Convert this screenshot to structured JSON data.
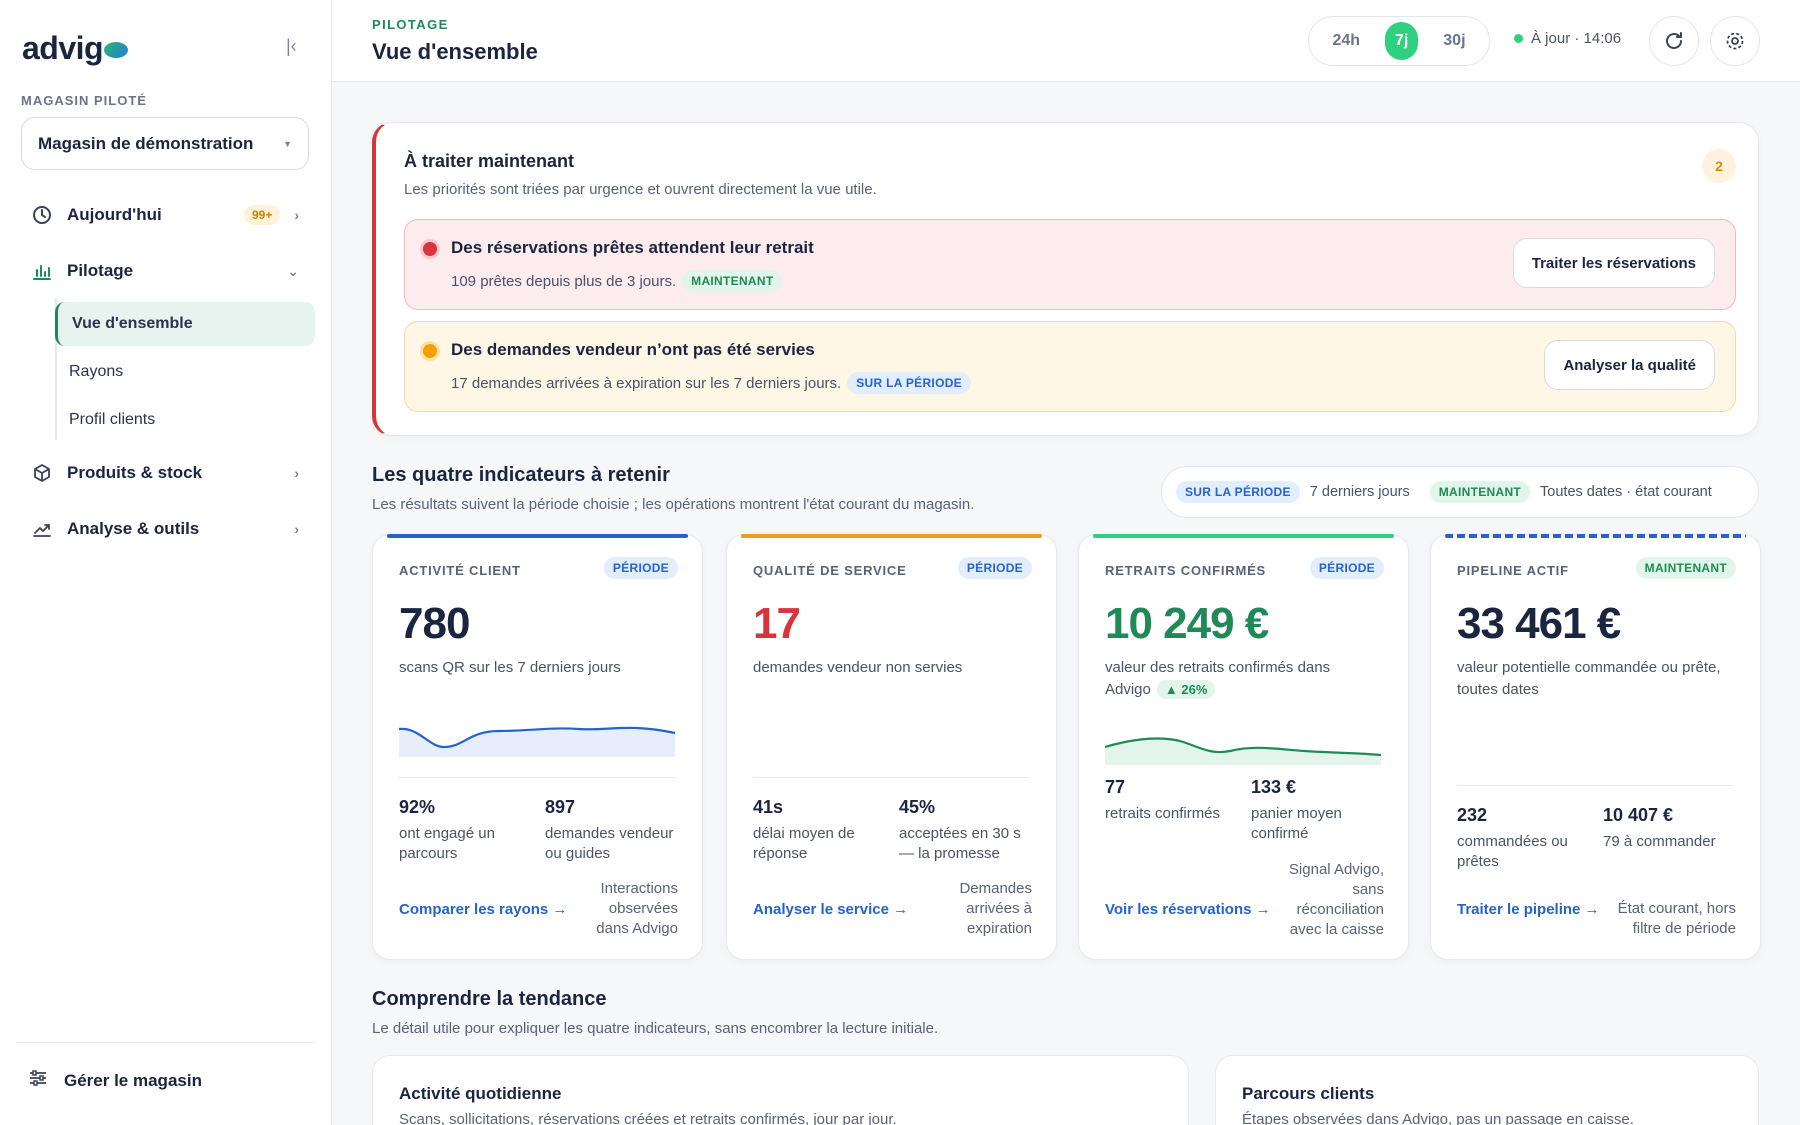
{
  "app": {
    "logo": "advig"
  },
  "sidebar": {
    "store_section": "MAGASIN PILOTÉ",
    "store_name": "Magasin de démonstration",
    "items": [
      {
        "label": "Aujourd'hui",
        "badge": "99+"
      },
      {
        "label": "Pilotage"
      },
      {
        "label": "Produits & stock"
      },
      {
        "label": "Analyse & outils"
      }
    ],
    "subitems": [
      {
        "label": "Vue d'ensemble"
      },
      {
        "label": "Rayons"
      },
      {
        "label": "Profil clients"
      }
    ],
    "manage_label": "Gérer le magasin"
  },
  "header": {
    "eyebrow": "PILOTAGE",
    "title": "Vue d'ensemble",
    "periods": [
      "24h",
      "7j",
      "30j"
    ],
    "active_period": "7j",
    "status": "À jour · 14:06"
  },
  "priorities": {
    "title": "À traiter maintenant",
    "subtitle": "Les priorités sont triées par urgence et ouvrent directement la vue utile.",
    "count": "2",
    "alerts": [
      {
        "title": "Des réservations prêtes attendent leur retrait",
        "text": "109 prêtes depuis plus de 3 jours.",
        "tag": "MAINTENANT",
        "action": "Traiter les réservations"
      },
      {
        "title": "Des demandes vendeur n’ont pas été servies",
        "text": "17 demandes arrivées à expiration sur les 7 derniers jours.",
        "tag": "SUR LA PÉRIODE",
        "action": "Analyser la qualité"
      }
    ]
  },
  "indicators": {
    "title": "Les quatre indicateurs à retenir",
    "subtitle": "Les résultats suivent la période choisie ; les opérations montrent l'état courant du magasin.",
    "legend": {
      "period_tag": "SUR LA PÉRIODE",
      "period_text": "7 derniers jours",
      "now_tag": "MAINTENANT",
      "now_text": "Toutes dates · état courant"
    },
    "cards": [
      {
        "label": "ACTIVITÉ CLIENT",
        "tag": "PÉRIODE",
        "value": "780",
        "desc": "scans QR sur les 7 derniers jours",
        "m1_value": "92%",
        "m1_label": "ont engagé un parcours",
        "m2_value": "897",
        "m2_label": "demandes vendeur ou guides",
        "link": "Comparer les rayons →",
        "note": "Interactions observées dans Advigo"
      },
      {
        "label": "QUALITÉ DE SERVICE",
        "tag": "PÉRIODE",
        "value": "17",
        "desc": "demandes vendeur non servies",
        "m1_value": "41s",
        "m1_label": "délai moyen de réponse",
        "m2_value": "45%",
        "m2_label": "acceptées en 30 s — la promesse",
        "link": "Analyser le service →",
        "note": "Demandes arrivées à expiration"
      },
      {
        "label": "RETRAITS CONFIRMÉS",
        "tag": "PÉRIODE",
        "value": "10 249 €",
        "desc": "valeur des retraits confirmés dans Advigo",
        "trend": "▲ 26%",
        "m1_value": "77",
        "m1_label": "retraits confirmés",
        "m2_value": "133 €",
        "m2_label": "panier moyen confirmé",
        "link": "Voir les réservations →",
        "note": "Signal Advigo, sans réconciliation avec la caisse"
      },
      {
        "label": "PIPELINE ACTIF",
        "tag": "MAINTENANT",
        "value": "33 461 €",
        "desc": "valeur potentielle commandée ou prête, toutes dates",
        "m1_value": "232",
        "m1_label": "commandées ou prêtes",
        "m2_value": "10 407 €",
        "m2_label": "79 à commander",
        "link": "Traiter le pipeline →",
        "note": "État courant, hors filtre de période"
      }
    ]
  },
  "trend": {
    "title": "Comprendre la tendance",
    "subtitle": "Le détail utile pour expliquer les quatre indicateurs, sans encombrer la lecture initiale.",
    "cards": [
      {
        "title": "Activité quotidienne",
        "subtitle": "Scans, sollicitations, réservations créées et retraits confirmés, jour par jour."
      },
      {
        "title": "Parcours clients",
        "subtitle": "Étapes observées dans Advigo, pas un passage en caisse."
      }
    ]
  },
  "colors": {
    "accent_green": "#1f8a57",
    "alert_red": "#d8343b",
    "blue": "#2563c9",
    "amber": "#f2a200",
    "period_active": "#2fd07f"
  }
}
